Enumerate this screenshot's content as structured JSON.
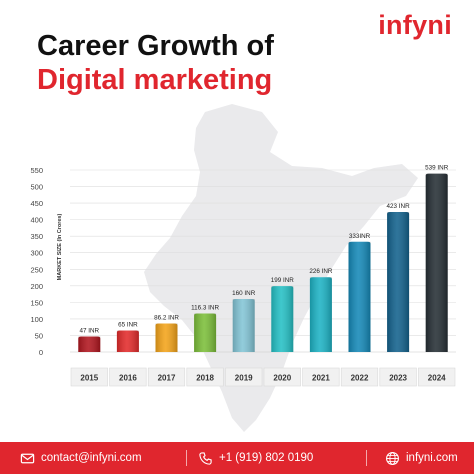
{
  "brand": "infyni",
  "title_line1": "Career Growth of",
  "title_line2": "Digital marketing",
  "colors": {
    "accent": "#e0262e",
    "map": "#eaeaec"
  },
  "chart_data": {
    "type": "bar",
    "categories": [
      "2015",
      "2016",
      "2017",
      "2018",
      "2019",
      "2020",
      "2021",
      "2022",
      "2023",
      "2024"
    ],
    "values": [
      47,
      65,
      86.2,
      116.3,
      160,
      199,
      226,
      333,
      423,
      539
    ],
    "data_labels": [
      "47 INR",
      "65 INR",
      "86.2 INR",
      "116.3 INR",
      "160 INR",
      "199 INR",
      "226 INR",
      "333INR",
      "423 INR",
      "539 INR"
    ],
    "bar_colors": [
      "#b1161f",
      "#e32b2b",
      "#f4a41a",
      "#7cbf3a",
      "#83c5d6",
      "#25c0c5",
      "#1db3c5",
      "#1589b8",
      "#13628d",
      "#262f35"
    ],
    "ylabel": "MARKET SIZE (In Crores)",
    "yticks": [
      0,
      50,
      100,
      150,
      200,
      250,
      300,
      350,
      400,
      450,
      500,
      550
    ],
    "ylim": [
      0,
      550
    ]
  },
  "footer": {
    "email": "contact@infyni.com",
    "phone": "+1 (919) 802 0190",
    "website": "infyni.com",
    "email_icon": "mail-icon",
    "phone_icon": "phone-icon",
    "website_icon": "globe-icon"
  }
}
